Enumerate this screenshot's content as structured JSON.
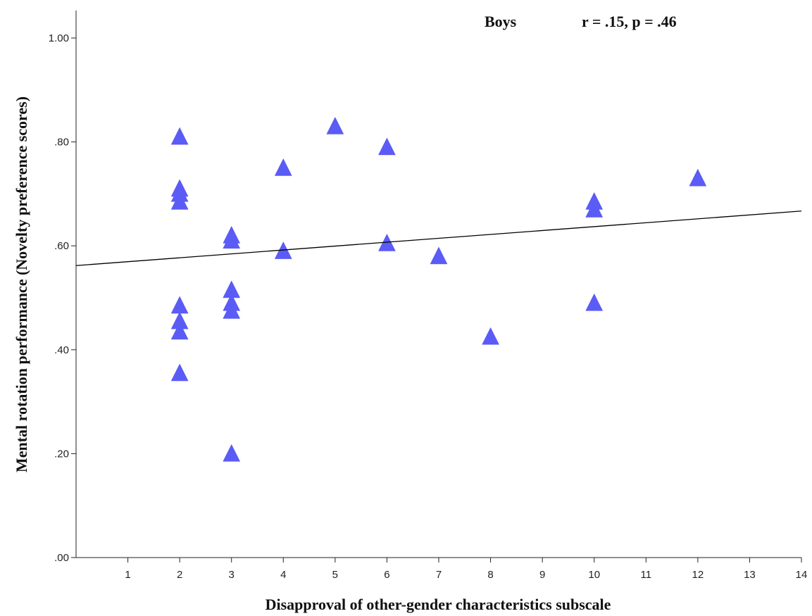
{
  "chart_data": {
    "type": "scatter",
    "title": "",
    "xlabel": "Disapproval of other-gender characteristics subscale",
    "ylabel": "Mental rotation performance (Novelty preference scores)",
    "xlim": [
      0,
      14
    ],
    "ylim": [
      0,
      1.0
    ],
    "x_ticks": [
      1,
      2,
      3,
      4,
      5,
      6,
      7,
      8,
      9,
      10,
      11,
      12,
      13,
      14
    ],
    "x_tick_labels": [
      "1",
      "2",
      "3",
      "4",
      "5",
      "6",
      "7",
      "8",
      "9",
      "10",
      "11",
      "12",
      "13",
      "14"
    ],
    "y_ticks": [
      0,
      0.2,
      0.4,
      0.6,
      0.8,
      1.0
    ],
    "y_tick_labels": [
      ".00",
      ".20",
      ".40",
      ".60",
      ".80",
      "1.00"
    ],
    "grid": false,
    "marker": "triangle",
    "marker_color": "#5b5bf5",
    "annotations": {
      "group": "Boys",
      "stats": "r = .15, p = .46"
    },
    "series": [
      {
        "points": [
          [
            2,
            0.81
          ],
          [
            2,
            0.71
          ],
          [
            2,
            0.7
          ],
          [
            2,
            0.685
          ],
          [
            2,
            0.485
          ],
          [
            2,
            0.455
          ],
          [
            2,
            0.435
          ],
          [
            2,
            0.355
          ],
          [
            3,
            0.62
          ],
          [
            3,
            0.61
          ],
          [
            3,
            0.515
          ],
          [
            3,
            0.49
          ],
          [
            3,
            0.475
          ],
          [
            3,
            0.2
          ],
          [
            4,
            0.75
          ],
          [
            4,
            0.59
          ],
          [
            5,
            0.83
          ],
          [
            6,
            0.79
          ],
          [
            6,
            0.605
          ],
          [
            7,
            0.58
          ],
          [
            8,
            0.425
          ],
          [
            10,
            0.685
          ],
          [
            10,
            0.67
          ],
          [
            10,
            0.49
          ],
          [
            12,
            0.73
          ]
        ]
      }
    ],
    "fit_line": {
      "type": "linear",
      "x": [
        0,
        14
      ],
      "y": [
        0.562,
        0.667
      ],
      "color": "#000000"
    }
  }
}
